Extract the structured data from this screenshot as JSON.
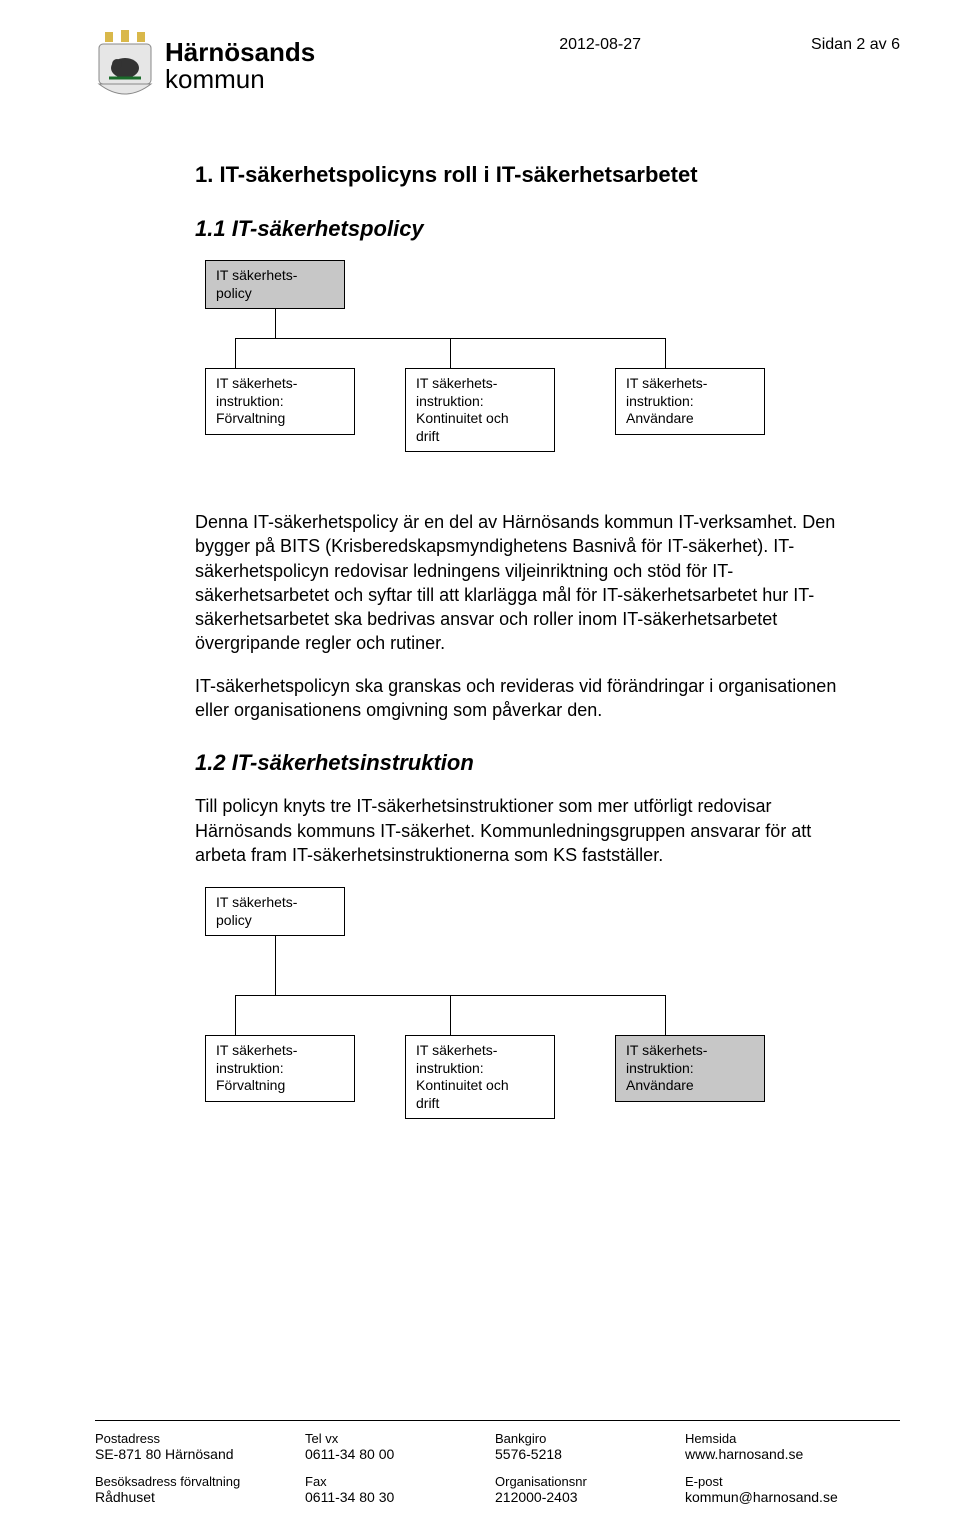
{
  "header": {
    "date": "2012-08-27",
    "page_indicator": "Sidan 2 av 6",
    "org_name": "Härnösands",
    "org_unit": "kommun"
  },
  "section1": {
    "heading": "1.   IT-säkerhetspolicyns roll i IT-säkerhetsarbetet",
    "sub1": "1.1 IT-säkerhetspolicy",
    "para1": "Denna IT-säkerhetspolicy är en del av Härnösands kommun IT-verksamhet. Den bygger på BITS (Krisberedskapsmyndighetens Basnivå för IT-säkerhet). IT-säkerhetspolicyn redovisar ledningens viljeinriktning och stöd för IT-säkerhetsarbetet och syftar till att klarlägga mål för IT-säkerhetsarbetet hur IT-säkerhetsarbetet ska bedrivas ansvar och roller inom IT-säkerhetsarbetet övergripande regler och rutiner.",
    "para2": "IT-säkerhetspolicyn ska granskas och revideras vid förändringar i organisationen eller organisationens omgivning som påverkar den.",
    "sub2": "1.2 IT-säkerhetsinstruktion",
    "para3": "Till policyn knyts tre IT-säkerhetsinstruktioner som mer utförligt redovisar Härnösands kommuns IT-säkerhet. Kommunledningsgruppen ansvarar för att arbeta fram IT-säkerhetsinstruktionerna som KS fastställer."
  },
  "diagram1": {
    "root": "IT säkerhets-\npolicy",
    "c1": "IT säkerhets-\ninstruktion:\nFörvaltning",
    "c2": "IT säkerhets-\ninstruktion:\nKontinuitet och\ndrift",
    "c3": "IT säkerhets-\ninstruktion:\nAnvändare",
    "root_bg": "#c7c7c7",
    "node_border": "#000000"
  },
  "diagram2": {
    "root": "IT säkerhets-\npolicy",
    "c1": "IT säkerhets-\ninstruktion:\nFörvaltning",
    "c2": "IT säkerhets-\ninstruktion:\nKontinuitet och\ndrift",
    "c3": "IT säkerhets-\ninstruktion:\nAnvändare",
    "highlight": "c3"
  },
  "footer": {
    "c1_label": "Postadress",
    "c1_val": "SE-871 80 Härnösand",
    "c2_label": "Tel vx",
    "c2_val": "0611-34 80 00",
    "c3_label": "Bankgiro",
    "c3_val": "5576-5218",
    "c4_label": "Hemsida",
    "c4_val": "www.harnosand.se",
    "c5_label": "Besöksadress förvaltning",
    "c5_val": "Rådhuset",
    "c6_label": "Fax",
    "c6_val": "0611-34 80 30",
    "c7_label": "Organisationsnr",
    "c7_val": "212000-2403",
    "c8_label": "E-post",
    "c8_val": "kommun@harnosand.se"
  }
}
